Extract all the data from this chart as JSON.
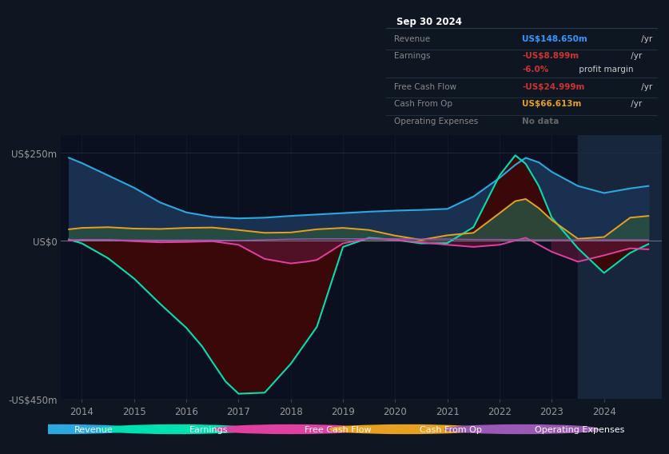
{
  "bg_color": "#0e1621",
  "plot_bg": "#131e2e",
  "plot_bg_dark": "#0a1020",
  "grid_color": "#1e2d40",
  "zero_line_color": "#c0c0c0",
  "ylim": [
    -450,
    300
  ],
  "xlim": [
    2013.6,
    2025.1
  ],
  "ylabel_top": "US$250m",
  "ylabel_bottom": "-US$450m",
  "ylabel_zero": "US$0",
  "xticks": [
    2014,
    2015,
    2016,
    2017,
    2018,
    2019,
    2020,
    2021,
    2022,
    2023,
    2024
  ],
  "title_box": {
    "date": "Sep 30 2024",
    "rows": [
      {
        "label": "Revenue",
        "value": "US$148.650m",
        "suffix": " /yr",
        "value_color": "#3399ff",
        "label_color": "#888888"
      },
      {
        "label": "Earnings",
        "value": "-US$8.899m",
        "suffix": " /yr",
        "value_color": "#cc3333",
        "label_color": "#888888"
      },
      {
        "label": "",
        "value": "-6.0%",
        "suffix": " profit margin",
        "value_color": "#cc3333",
        "label_color": "#888888",
        "sub": true
      },
      {
        "label": "Free Cash Flow",
        "value": "-US$24.999m",
        "suffix": " /yr",
        "value_color": "#cc3333",
        "label_color": "#888888"
      },
      {
        "label": "Cash From Op",
        "value": "US$66.613m",
        "suffix": " /yr",
        "value_color": "#e8a020",
        "label_color": "#888888"
      },
      {
        "label": "Operating Expenses",
        "value": "No data",
        "suffix": "",
        "value_color": "#666666",
        "label_color": "#888888"
      }
    ]
  },
  "series": {
    "revenue": {
      "color": "#2aa8e0",
      "fill_color": "#1a3050",
      "x": [
        2013.75,
        2014.0,
        2014.5,
        2015.0,
        2015.5,
        2016.0,
        2016.5,
        2017.0,
        2017.5,
        2018.0,
        2018.5,
        2019.0,
        2019.5,
        2020.0,
        2020.5,
        2021.0,
        2021.5,
        2022.0,
        2022.3,
        2022.5,
        2022.75,
        2023.0,
        2023.5,
        2024.0,
        2024.5,
        2024.85
      ],
      "y": [
        235,
        220,
        185,
        150,
        108,
        80,
        67,
        63,
        65,
        70,
        74,
        78,
        82,
        85,
        87,
        90,
        125,
        178,
        215,
        235,
        222,
        195,
        155,
        135,
        148,
        155
      ]
    },
    "earnings": {
      "color": "#00e0b0",
      "fill_color": "#3a0808",
      "x": [
        2013.75,
        2014.0,
        2014.5,
        2015.0,
        2015.5,
        2016.0,
        2016.3,
        2016.5,
        2016.75,
        2017.0,
        2017.5,
        2018.0,
        2018.5,
        2019.0,
        2019.5,
        2020.0,
        2020.5,
        2021.0,
        2021.5,
        2022.0,
        2022.3,
        2022.5,
        2022.75,
        2023.0,
        2023.5,
        2024.0,
        2024.5,
        2024.85
      ],
      "y": [
        3,
        -8,
        -50,
        -108,
        -180,
        -248,
        -300,
        -345,
        -400,
        -435,
        -432,
        -350,
        -245,
        -18,
        8,
        2,
        -8,
        -7,
        38,
        185,
        242,
        218,
        155,
        65,
        -22,
        -92,
        -35,
        -10
      ]
    },
    "free_cash_flow": {
      "color": "#e040a0",
      "fill_color": "#5a1030",
      "x": [
        2013.75,
        2014.0,
        2014.5,
        2015.0,
        2015.5,
        2016.0,
        2016.5,
        2017.0,
        2017.5,
        2018.0,
        2018.3,
        2018.5,
        2019.0,
        2019.5,
        2020.0,
        2020.5,
        2021.0,
        2021.5,
        2022.0,
        2022.5,
        2023.0,
        2023.5,
        2024.0,
        2024.5,
        2024.85
      ],
      "y": [
        0,
        2,
        2,
        -2,
        -5,
        -4,
        -2,
        -12,
        -52,
        -65,
        -60,
        -55,
        -8,
        6,
        2,
        -5,
        -12,
        -18,
        -12,
        8,
        -32,
        -60,
        -42,
        -22,
        -25
      ]
    },
    "cash_from_op": {
      "color": "#e8a020",
      "fill_color": "#3a3010",
      "x": [
        2013.75,
        2014.0,
        2014.5,
        2015.0,
        2015.5,
        2016.0,
        2016.5,
        2017.0,
        2017.5,
        2018.0,
        2018.5,
        2019.0,
        2019.5,
        2020.0,
        2020.5,
        2021.0,
        2021.5,
        2022.0,
        2022.3,
        2022.5,
        2022.75,
        2023.0,
        2023.5,
        2024.0,
        2024.5,
        2024.85
      ],
      "y": [
        32,
        36,
        38,
        34,
        33,
        36,
        37,
        30,
        22,
        23,
        32,
        36,
        30,
        14,
        2,
        15,
        22,
        78,
        112,
        118,
        92,
        58,
        5,
        10,
        65,
        70
      ]
    },
    "operating_expenses": {
      "color": "#9b59b6",
      "x": [
        2013.75,
        2014.0,
        2014.5,
        2015.0,
        2015.5,
        2016.0,
        2016.5,
        2017.0,
        2017.5,
        2018.0,
        2018.5,
        2019.0,
        2019.5,
        2020.0,
        2020.5,
        2021.0,
        2021.5,
        2022.0,
        2022.5,
        2023.0,
        2023.5,
        2024.0,
        2024.5,
        2024.85
      ],
      "y": [
        2,
        2,
        2,
        1,
        1,
        1,
        1,
        0,
        2,
        4,
        5,
        5,
        5,
        5,
        4,
        4,
        3,
        3,
        2,
        2,
        2,
        2,
        2,
        2
      ]
    }
  },
  "legend_items": [
    {
      "label": "Revenue",
      "color": "#2aa8e0"
    },
    {
      "label": "Earnings",
      "color": "#00e0b0"
    },
    {
      "label": "Free Cash Flow",
      "color": "#e040a0"
    },
    {
      "label": "Cash From Op",
      "color": "#e8a020"
    },
    {
      "label": "Operating Expenses",
      "color": "#9b59b6"
    }
  ],
  "shaded_right_x": 2023.5,
  "shaded_right_color": "#1a2a40"
}
